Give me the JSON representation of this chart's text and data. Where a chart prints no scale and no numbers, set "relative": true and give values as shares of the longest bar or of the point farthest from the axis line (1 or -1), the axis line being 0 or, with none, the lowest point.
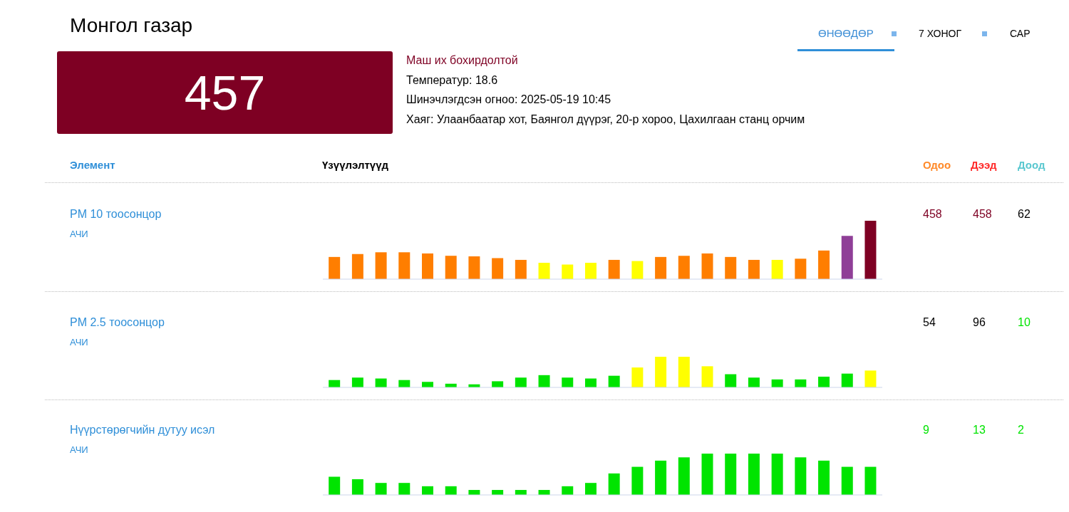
{
  "chart_data": [
    {
      "type": "other",
      "title": "Монгол газар",
      "annotations": [
        "ӨНӨӨДӨР",
        "7 ХОНОГ",
        "САР",
        "457",
        "Маш их бохирдолтой",
        "Температур: 18.6",
        "Шинэчлэгдсэн огноо: 2025-05-19 10:45",
        "Хаяг: Улаанбаатар хот, Баянгол дүүрэг, 20-р хороо, Цахилгаан станц орчим",
        "Элемент",
        "Үзүүлэлтүүд",
        "Одоо",
        "Дээд",
        "Доод"
      ]
    },
    {
      "type": "bar",
      "relative": true,
      "categories": [
        null,
        null,
        null,
        null,
        null,
        null,
        null,
        null,
        null,
        null,
        null,
        null,
        null,
        null,
        null,
        null,
        null,
        null,
        null,
        null,
        null,
        null,
        null,
        null
      ],
      "values": [
        0.38,
        0.43,
        0.46,
        0.46,
        0.44,
        0.4,
        0.39,
        0.36,
        0.33,
        0.28,
        0.25,
        0.28,
        0.33,
        0.31,
        0.38,
        0.4,
        0.44,
        0.38,
        0.33,
        0.33,
        0.35,
        0.49,
        0.74,
        1
      ],
      "colors": [
        "#ff7e00",
        "#ff7e00",
        "#ff7e00",
        "#ff7e00",
        "#ff7e00",
        "#ff7e00",
        "#ff7e00",
        "#ff7e00",
        "#ff7e00",
        "#ffff00",
        "#ffff00",
        "#ffff00",
        "#ff7e00",
        "#ffff00",
        "#ff7e00",
        "#ff7e00",
        "#ff7e00",
        "#ff7e00",
        "#ff7e00",
        "#ffff00",
        "#ff7e00",
        "#ff7e00",
        "#8f3f97",
        "#7e0023"
      ],
      "annotations": [
        "PM 10 тоосонцор",
        "АЧИ",
        "458",
        "458",
        "62"
      ]
    },
    {
      "type": "bar",
      "relative": true,
      "categories": [
        null,
        null,
        null,
        null,
        null,
        null,
        null,
        null,
        null,
        null,
        null,
        null,
        null,
        null,
        null,
        null,
        null,
        null,
        null,
        null,
        null,
        null,
        null,
        null
      ],
      "values": [
        0.24,
        0.32,
        0.29,
        0.24,
        0.18,
        0.12,
        0.1,
        0.2,
        0.32,
        0.4,
        0.32,
        0.29,
        0.38,
        0.65,
        1,
        1,
        0.69,
        0.43,
        0.32,
        0.26,
        0.26,
        0.35,
        0.45,
        0.55
      ],
      "colors": [
        "#00e400",
        "#00e400",
        "#00e400",
        "#00e400",
        "#00e400",
        "#00e400",
        "#00e400",
        "#00e400",
        "#00e400",
        "#00e400",
        "#00e400",
        "#00e400",
        "#00e400",
        "#ffff00",
        "#ffff00",
        "#ffff00",
        "#ffff00",
        "#00e400",
        "#00e400",
        "#00e400",
        "#00e400",
        "#00e400",
        "#00e400",
        "#ffff00"
      ],
      "annotations": [
        "PM 2.5 тоосонцор",
        "АЧИ",
        "54",
        "96",
        "10"
      ]
    },
    {
      "type": "bar",
      "relative": true,
      "categories": [
        null,
        null,
        null,
        null,
        null,
        null,
        null,
        null,
        null,
        null,
        null,
        null,
        null,
        null,
        null,
        null,
        null,
        null,
        null,
        null,
        null,
        null,
        null,
        null
      ],
      "values": [
        0.44,
        0.38,
        0.29,
        0.29,
        0.21,
        0.21,
        0.12,
        0.12,
        0.12,
        0.12,
        0.21,
        0.29,
        0.52,
        0.68,
        0.83,
        0.91,
        1,
        1,
        1,
        1,
        0.91,
        0.83,
        0.68,
        0.68
      ],
      "colors": [
        "#00e400",
        "#00e400",
        "#00e400",
        "#00e400",
        "#00e400",
        "#00e400",
        "#00e400",
        "#00e400",
        "#00e400",
        "#00e400",
        "#00e400",
        "#00e400",
        "#00e400",
        "#00e400",
        "#00e400",
        "#00e400",
        "#00e400",
        "#00e400",
        "#00e400",
        "#00e400",
        "#00e400",
        "#00e400",
        "#00e400",
        "#00e400"
      ],
      "annotations": [
        "Нүүрстөрөгчийн дутуу исэл",
        "АЧИ",
        "9",
        "13",
        "2"
      ]
    }
  ]
}
